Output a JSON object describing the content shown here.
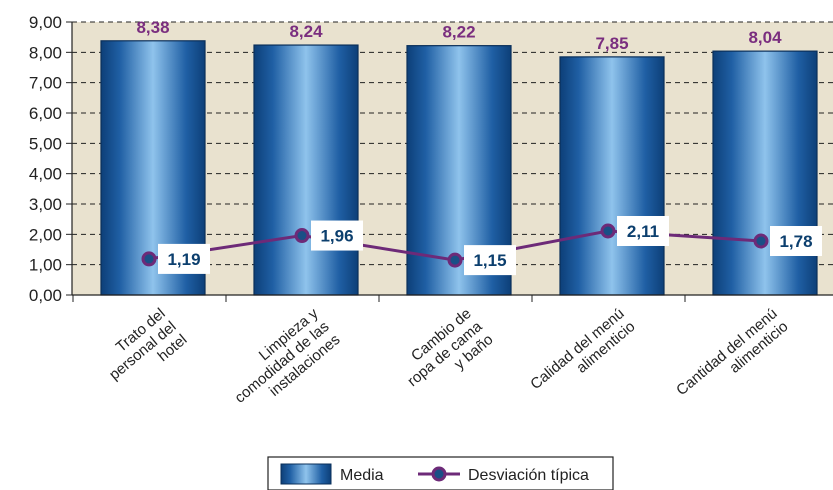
{
  "chart_data": {
    "type": "bar",
    "categories": [
      [
        "Trato del",
        "personal del",
        "hotel"
      ],
      [
        "Limpieza y",
        "comodidad de las",
        "instalaciones"
      ],
      [
        "Cambio de",
        "ropa de cama",
        "y baño"
      ],
      [
        "Calidad del menú",
        "alimenticio"
      ],
      [
        "Cantidad del menú",
        "alimenticio"
      ]
    ],
    "series": [
      {
        "name": "Media",
        "kind": "bar",
        "values": [
          8.38,
          8.24,
          8.22,
          7.85,
          8.04
        ],
        "labels": [
          "8,38",
          "8,24",
          "8,22",
          "7,85",
          "8,04"
        ],
        "color": "#1f63a8"
      },
      {
        "name": "Desviación típica",
        "kind": "line",
        "values": [
          1.19,
          1.96,
          1.15,
          2.11,
          1.78
        ],
        "labels": [
          "1,19",
          "1,96",
          "1,15",
          "2,11",
          "1,78"
        ],
        "color": "#6d2a78"
      }
    ],
    "ylim": [
      0,
      9
    ],
    "yticks": [
      "0,00",
      "1,00",
      "2,00",
      "3,00",
      "4,00",
      "5,00",
      "6,00",
      "7,00",
      "8,00",
      "9,00"
    ],
    "grid": true,
    "plot_background": "#e9e2cf",
    "legend_position": "bottom-center"
  }
}
